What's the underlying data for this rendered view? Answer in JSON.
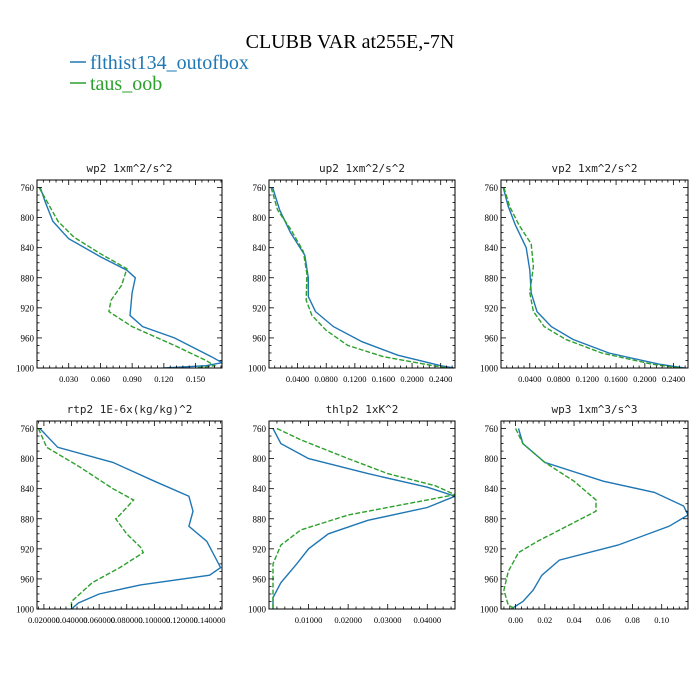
{
  "figure": {
    "title": "CLUBB VAR at255E,-7N",
    "legend": [
      {
        "label": "flthist134_outofbox",
        "color": "#1f77b4",
        "dash": "solid"
      },
      {
        "label": "taus_oob",
        "color": "#2ca02c",
        "dash": "dashed"
      }
    ]
  },
  "chart_data": [
    {
      "type": "line",
      "title": "wp2  1xm^2/s^2",
      "y_ticks": [
        760,
        800,
        840,
        880,
        920,
        960,
        1000
      ],
      "ylim": [
        1000,
        750
      ],
      "xlim": [
        0.0,
        0.175
      ],
      "x_ticks": [
        0.03,
        0.06,
        0.09,
        0.12,
        0.15
      ],
      "x_tick_labels": [
        "0.030",
        "0.060",
        "0.090",
        "0.120",
        "0.150"
      ],
      "series": [
        {
          "name": "flthist134_outofbox",
          "points": [
            [
              0.003,
              760
            ],
            [
              0.008,
              780
            ],
            [
              0.015,
              805
            ],
            [
              0.03,
              828
            ],
            [
              0.06,
              852
            ],
            [
              0.085,
              870
            ],
            [
              0.093,
              880
            ],
            [
              0.09,
              900
            ],
            [
              0.088,
              930
            ],
            [
              0.1,
              945
            ],
            [
              0.13,
              960
            ],
            [
              0.165,
              985
            ],
            [
              0.175,
              993
            ],
            [
              0.16,
              997
            ],
            [
              0.12,
              1000
            ]
          ]
        },
        {
          "name": "taus_oob",
          "points": [
            [
              0.002,
              760
            ],
            [
              0.01,
              780
            ],
            [
              0.02,
              805
            ],
            [
              0.035,
              826
            ],
            [
              0.06,
              848
            ],
            [
              0.085,
              868
            ],
            [
              0.08,
              890
            ],
            [
              0.07,
              910
            ],
            [
              0.068,
              925
            ],
            [
              0.09,
              945
            ],
            [
              0.13,
              970
            ],
            [
              0.16,
              990
            ],
            [
              0.168,
              997
            ],
            [
              0.15,
              1000
            ]
          ]
        }
      ]
    },
    {
      "type": "line",
      "title": "up2  1xm^2/s^2",
      "y_ticks": [
        760,
        800,
        840,
        880,
        920,
        960,
        1000
      ],
      "ylim": [
        1000,
        750
      ],
      "xlim": [
        0.0,
        0.26
      ],
      "x_ticks": [
        0.04,
        0.08,
        0.12,
        0.16,
        0.2,
        0.24
      ],
      "x_tick_labels": [
        "0.0400",
        "0.0800",
        "0.1200",
        "0.1600",
        "0.2000",
        "0.2400"
      ],
      "series": [
        {
          "name": "flthist134_outofbox",
          "points": [
            [
              0.005,
              760
            ],
            [
              0.015,
              790
            ],
            [
              0.03,
              820
            ],
            [
              0.05,
              850
            ],
            [
              0.055,
              880
            ],
            [
              0.055,
              905
            ],
            [
              0.065,
              925
            ],
            [
              0.09,
              945
            ],
            [
              0.13,
              965
            ],
            [
              0.18,
              983
            ],
            [
              0.24,
              997
            ],
            [
              0.258,
              1000
            ]
          ]
        },
        {
          "name": "taus_oob",
          "points": [
            [
              0.003,
              760
            ],
            [
              0.012,
              790
            ],
            [
              0.03,
              815
            ],
            [
              0.048,
              845
            ],
            [
              0.053,
              875
            ],
            [
              0.052,
              910
            ],
            [
              0.06,
              930
            ],
            [
              0.08,
              950
            ],
            [
              0.11,
              970
            ],
            [
              0.16,
              985
            ],
            [
              0.23,
              997
            ],
            [
              0.25,
              1000
            ]
          ]
        }
      ]
    },
    {
      "type": "line",
      "title": "vp2  1xm^2/s^2",
      "y_ticks": [
        760,
        800,
        840,
        880,
        920,
        960,
        1000
      ],
      "ylim": [
        1000,
        750
      ],
      "xlim": [
        0.0,
        0.26
      ],
      "x_ticks": [
        0.04,
        0.08,
        0.12,
        0.16,
        0.2,
        0.24
      ],
      "x_tick_labels": [
        "0.0400",
        "0.0800",
        "0.1200",
        "0.1600",
        "0.2000",
        "0.2400"
      ],
      "series": [
        {
          "name": "flthist134_outofbox",
          "points": [
            [
              0.003,
              760
            ],
            [
              0.01,
              785
            ],
            [
              0.02,
              810
            ],
            [
              0.035,
              840
            ],
            [
              0.04,
              870
            ],
            [
              0.042,
              900
            ],
            [
              0.05,
              925
            ],
            [
              0.07,
              945
            ],
            [
              0.1,
              962
            ],
            [
              0.15,
              980
            ],
            [
              0.22,
              995
            ],
            [
              0.255,
              1000
            ]
          ]
        },
        {
          "name": "taus_oob",
          "points": [
            [
              0.004,
              760
            ],
            [
              0.012,
              785
            ],
            [
              0.025,
              810
            ],
            [
              0.042,
              835
            ],
            [
              0.045,
              865
            ],
            [
              0.04,
              900
            ],
            [
              0.045,
              925
            ],
            [
              0.06,
              945
            ],
            [
              0.09,
              962
            ],
            [
              0.14,
              980
            ],
            [
              0.21,
              995
            ],
            [
              0.25,
              1000
            ]
          ]
        }
      ]
    },
    {
      "type": "line",
      "title": "rtp2  1E-6x(kg/kg)^2",
      "y_ticks": [
        760,
        800,
        840,
        880,
        920,
        960,
        1000
      ],
      "ylim": [
        1000,
        750
      ],
      "xlim": [
        0.015,
        0.149
      ],
      "x_ticks": [
        0.02,
        0.04,
        0.06,
        0.08,
        0.1,
        0.12,
        0.14
      ],
      "x_tick_labels": [
        "0.020000",
        "0.040000",
        "0.060000",
        "0.080000",
        "0.100000",
        "0.120000",
        "0.140000"
      ],
      "series": [
        {
          "name": "flthist134_outofbox",
          "points": [
            [
              0.017,
              760
            ],
            [
              0.03,
              785
            ],
            [
              0.07,
              805
            ],
            [
              0.1,
              830
            ],
            [
              0.125,
              850
            ],
            [
              0.128,
              870
            ],
            [
              0.125,
              890
            ],
            [
              0.138,
              910
            ],
            [
              0.148,
              945
            ],
            [
              0.14,
              955
            ],
            [
              0.09,
              968
            ],
            [
              0.06,
              980
            ],
            [
              0.045,
              992
            ],
            [
              0.04,
              1000
            ]
          ]
        },
        {
          "name": "taus_oob",
          "points": [
            [
              0.016,
              760
            ],
            [
              0.022,
              785
            ],
            [
              0.045,
              810
            ],
            [
              0.07,
              840
            ],
            [
              0.085,
              855
            ],
            [
              0.075,
              875
            ],
            [
              0.072,
              880
            ],
            [
              0.08,
              900
            ],
            [
              0.09,
              918
            ],
            [
              0.092,
              925
            ],
            [
              0.075,
              945
            ],
            [
              0.055,
              965
            ],
            [
              0.04,
              990
            ],
            [
              0.04,
              1000
            ]
          ]
        }
      ]
    },
    {
      "type": "line",
      "title": "thlp2  1xK^2",
      "y_ticks": [
        760,
        800,
        840,
        880,
        920,
        960,
        1000
      ],
      "ylim": [
        1000,
        750
      ],
      "xlim": [
        0.0,
        0.047
      ],
      "x_ticks": [
        0.01,
        0.02,
        0.03,
        0.04
      ],
      "x_tick_labels": [
        "0.01000",
        "0.02000",
        "0.03000",
        "0.04000"
      ],
      "series": [
        {
          "name": "flthist134_outofbox",
          "points": [
            [
              0.001,
              760
            ],
            [
              0.003,
              780
            ],
            [
              0.01,
              800
            ],
            [
              0.025,
              820
            ],
            [
              0.04,
              838
            ],
            [
              0.047,
              850
            ],
            [
              0.04,
              865
            ],
            [
              0.025,
              882
            ],
            [
              0.015,
              900
            ],
            [
              0.01,
              920
            ],
            [
              0.007,
              940
            ],
            [
              0.003,
              965
            ],
            [
              0.001,
              985
            ],
            [
              0.001,
              1000
            ]
          ]
        },
        {
          "name": "taus_oob",
          "points": [
            [
              0.002,
              760
            ],
            [
              0.008,
              775
            ],
            [
              0.02,
              800
            ],
            [
              0.03,
              820
            ],
            [
              0.042,
              836
            ],
            [
              0.047,
              848
            ],
            [
              0.035,
              860
            ],
            [
              0.02,
              875
            ],
            [
              0.008,
              895
            ],
            [
              0.003,
              915
            ],
            [
              0.001,
              940
            ],
            [
              0.001,
              960
            ],
            [
              0.001,
              1000
            ]
          ]
        }
      ]
    },
    {
      "type": "line",
      "title": "wp3  1xm^3/s^3",
      "y_ticks": [
        760,
        800,
        840,
        880,
        920,
        960,
        1000
      ],
      "ylim": [
        1000,
        750
      ],
      "xlim": [
        -0.01,
        0.118
      ],
      "x_ticks": [
        0.0,
        0.02,
        0.04,
        0.06,
        0.08,
        0.1
      ],
      "x_tick_labels": [
        "0.00",
        "0.02",
        "0.04",
        "0.06",
        "0.08",
        "0.10"
      ],
      "series": [
        {
          "name": "flthist134_outofbox",
          "points": [
            [
              0.002,
              760
            ],
            [
              0.005,
              780
            ],
            [
              0.02,
              805
            ],
            [
              0.06,
              830
            ],
            [
              0.095,
              845
            ],
            [
              0.115,
              863
            ],
            [
              0.118,
              875
            ],
            [
              0.105,
              890
            ],
            [
              0.07,
              915
            ],
            [
              0.03,
              935
            ],
            [
              0.018,
              955
            ],
            [
              0.012,
              975
            ],
            [
              0.005,
              990
            ],
            [
              -0.003,
              1000
            ]
          ]
        },
        {
          "name": "taus_oob",
          "points": [
            [
              0.0,
              760
            ],
            [
              0.005,
              780
            ],
            [
              0.02,
              805
            ],
            [
              0.04,
              830
            ],
            [
              0.055,
              855
            ],
            [
              0.055,
              870
            ],
            [
              0.035,
              890
            ],
            [
              0.015,
              910
            ],
            [
              0.002,
              925
            ],
            [
              -0.005,
              950
            ],
            [
              -0.008,
              975
            ],
            [
              -0.005,
              995
            ],
            [
              0.0,
              1000
            ]
          ]
        }
      ]
    }
  ]
}
